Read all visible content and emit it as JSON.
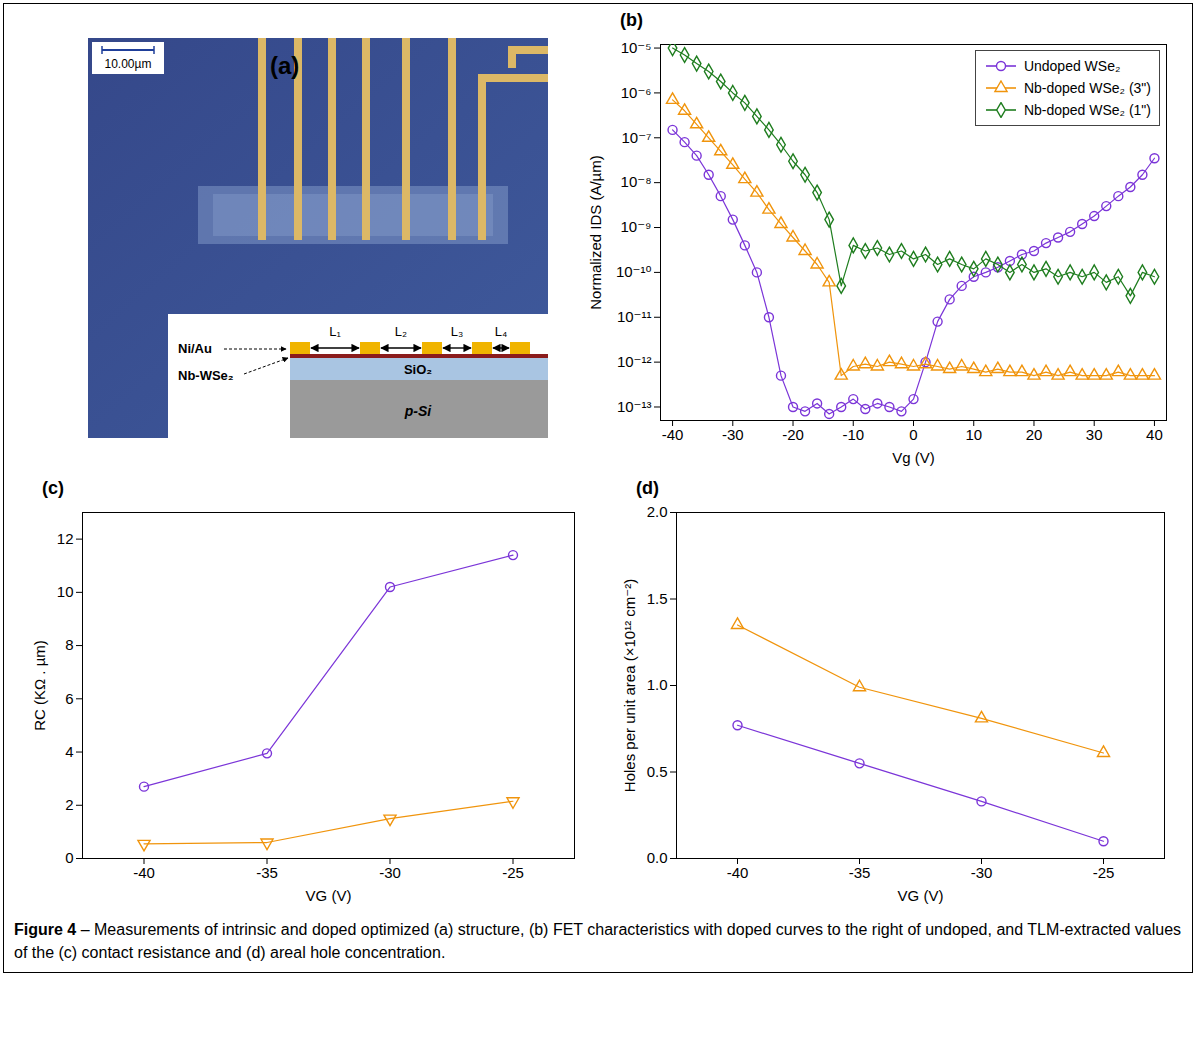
{
  "panel_a": {
    "label": "(a)",
    "scale_bar": "10.00µm",
    "layers": [
      "Ni/Au",
      "Nb-WSe₂",
      "SiO₂",
      "p-Si"
    ],
    "lengths": [
      "L₁",
      "L₂",
      "L₃",
      "L₄"
    ]
  },
  "chart_data": [
    {
      "type": "line",
      "title": "(b)",
      "x_label": "Vg (V)",
      "y_label": "Normalized IDS (A/µm)",
      "log": "y",
      "grid": false,
      "legend": "top-right",
      "xlim": [
        -42,
        42
      ],
      "xticks": [
        -40,
        -30,
        -20,
        -10,
        0,
        10,
        20,
        30,
        40
      ],
      "ylim": [
        5e-14,
        1.2e-05
      ],
      "yticks": [
        {
          "value": 1e-13,
          "label": "10⁻¹³"
        },
        {
          "value": 1e-12,
          "label": "10⁻¹²"
        },
        {
          "value": 1e-11,
          "label": "10⁻¹¹"
        },
        {
          "value": 1e-10,
          "label": "10⁻¹⁰"
        },
        {
          "value": 1e-09,
          "label": "10⁻⁹"
        },
        {
          "value": 1e-08,
          "label": "10⁻⁸"
        },
        {
          "value": 1e-07,
          "label": "10⁻⁷"
        },
        {
          "value": 1e-06,
          "label": "10⁻⁶"
        },
        {
          "value": 1e-05,
          "label": "10⁻⁵"
        }
      ],
      "x": [
        -40,
        -38,
        -36,
        -34,
        -32,
        -30,
        -28,
        -26,
        -24,
        -22,
        -20,
        -18,
        -16,
        -14,
        -12,
        -10,
        -8,
        -6,
        -4,
        -2,
        0,
        2,
        4,
        6,
        8,
        10,
        12,
        14,
        16,
        18,
        20,
        22,
        24,
        26,
        28,
        30,
        32,
        34,
        36,
        38,
        40
      ],
      "series": [
        {
          "name": "Undoped WSe₂",
          "color": "#7b35d8",
          "marker": "circle",
          "values": [
            1.5e-07,
            8e-08,
            4e-08,
            1.5e-08,
            5e-09,
            1.5e-09,
            4e-10,
            1e-10,
            1e-11,
            5e-13,
            1e-13,
            8e-14,
            1.2e-13,
            7e-14,
            1e-13,
            1.5e-13,
            9e-14,
            1.2e-13,
            1e-13,
            8e-14,
            1.5e-13,
            1e-12,
            8e-12,
            2.5e-11,
            5e-11,
            8e-11,
            1e-10,
            1.3e-10,
            1.8e-10,
            2.5e-10,
            3e-10,
            4.5e-10,
            6e-10,
            8e-10,
            1.2e-09,
            1.8e-09,
            3e-09,
            5e-09,
            8e-09,
            1.5e-08,
            3.5e-08
          ]
        },
        {
          "name": "Nb-doped WSe₂ (3\")",
          "color": "#f0940c",
          "marker": "triangle",
          "values": [
            7e-07,
            4e-07,
            2e-07,
            1e-07,
            5e-08,
            2.5e-08,
            1.2e-08,
            6e-09,
            2.5e-09,
            1.2e-09,
            6e-10,
            3e-10,
            1.5e-10,
            6e-11,
            5e-13,
            8e-13,
            9e-13,
            8e-13,
            1e-12,
            9e-13,
            8e-13,
            9e-13,
            8e-13,
            7e-13,
            8e-13,
            7e-13,
            6e-13,
            7e-13,
            6e-13,
            6e-13,
            5e-13,
            6e-13,
            5e-13,
            6e-13,
            5e-13,
            5e-13,
            5e-13,
            6e-13,
            5e-13,
            5e-13,
            5e-13
          ]
        },
        {
          "name": "Nb-doped WSe₂ (1\")",
          "color": "#1e7d1e",
          "marker": "diamond",
          "values": [
            1e-05,
            7e-06,
            4.5e-06,
            3e-06,
            1.8e-06,
            1e-06,
            6e-07,
            3e-07,
            1.5e-07,
            7e-08,
            3e-08,
            1.5e-08,
            6e-09,
            1.5e-09,
            5e-11,
            4e-10,
            3e-10,
            3.5e-10,
            2.5e-10,
            3e-10,
            2e-10,
            2.5e-10,
            1.5e-10,
            2e-10,
            1.5e-10,
            1.2e-10,
            2e-10,
            1.5e-10,
            1e-10,
            1.5e-10,
            1e-10,
            1.2e-10,
            8e-11,
            1e-10,
            8e-11,
            1e-10,
            6e-11,
            8e-11,
            3e-11,
            1e-10,
            8e-11
          ]
        }
      ]
    },
    {
      "type": "line",
      "title": "(c)",
      "x_label": "VG (V)",
      "y_label": "RC (KΩ . µm)",
      "grid": false,
      "xlim": [
        -42.5,
        -22.5
      ],
      "xticks": [
        -40,
        -35,
        -30,
        -25
      ],
      "ylim": [
        0,
        13
      ],
      "yticks": [
        0,
        2,
        4,
        6,
        8,
        10,
        12
      ],
      "x": [
        -40,
        -35,
        -30,
        -25
      ],
      "series": [
        {
          "color": "#7b35d8",
          "marker": "circle",
          "values": [
            2.7,
            3.95,
            10.2,
            11.4
          ]
        },
        {
          "color": "#f0940c",
          "marker": "triangle-down",
          "values": [
            0.55,
            0.6,
            1.5,
            2.15
          ]
        }
      ]
    },
    {
      "type": "line",
      "title": "(d)",
      "x_label": "VG (V)",
      "y_label": "Holes per unit area (×10¹² cm⁻²)",
      "grid": false,
      "xlim": [
        -42.5,
        -22.5
      ],
      "xticks": [
        -40,
        -35,
        -30,
        -25
      ],
      "ylim": [
        0,
        2
      ],
      "yticks": [
        {
          "value": 0,
          "label": "0.0"
        },
        {
          "value": 0.5,
          "label": "0.5"
        },
        {
          "value": 1,
          "label": "1.0"
        },
        {
          "value": 1.5,
          "label": "1.5"
        },
        {
          "value": 2,
          "label": "2.0"
        }
      ],
      "x": [
        -40,
        -35,
        -30,
        -25
      ],
      "series": [
        {
          "color": "#f0940c",
          "marker": "triangle",
          "values": [
            1.35,
            0.99,
            0.81,
            0.61
          ]
        },
        {
          "color": "#7b35d8",
          "marker": "circle",
          "values": [
            0.77,
            0.55,
            0.33,
            0.1
          ]
        }
      ]
    }
  ],
  "caption": {
    "label": "Figure 4",
    "text": "– Measurements of intrinsic and doped optimized (a) structure, (b) FET characteristics with doped curves to the right of undoped, and TLM-extracted values of the (c) contact resistance and (d) areal hole concentration."
  }
}
